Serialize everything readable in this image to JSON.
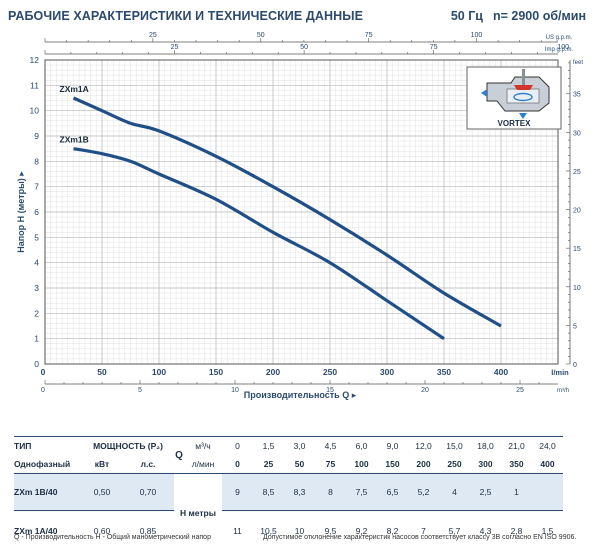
{
  "header": {
    "title": "РАБОЧИЕ ХАРАКТЕРИСТИКИ И ТЕХНИЧЕСКИЕ ДАННЫЕ",
    "frequency": "50 Гц",
    "speed": "n= 2900 об/мин"
  },
  "inset_label": "VORTEX",
  "colors": {
    "curve": "#1f4f86",
    "text": "#2b4a6e",
    "highlight_row": "#dfe9f3",
    "grid": "#b9b9b9"
  },
  "chart_data": {
    "type": "line",
    "xlabel": "Производительность Q",
    "ylabel": "Напор H (метры)",
    "x_unit": "l/min",
    "y_unit": "m",
    "xlim": [
      0,
      450
    ],
    "ylim": [
      0,
      12
    ],
    "x_ticks": [
      50,
      100,
      150,
      200,
      250,
      300,
      350,
      400
    ],
    "y_ticks": [
      1,
      2,
      3,
      4,
      5,
      6,
      7,
      8,
      9,
      10,
      11,
      12
    ],
    "grid": true,
    "top_axes": [
      {
        "unit": "US g.p.m.",
        "ticks": [
          "25",
          "50",
          "75",
          "100"
        ]
      },
      {
        "unit": "Imp g.p.m.",
        "ticks": [
          "25",
          "50",
          "75",
          "100"
        ]
      }
    ],
    "bottom_axis_m3h": {
      "unit": "m³/h",
      "ticks": [
        "5",
        "10",
        "15",
        "20",
        "25"
      ]
    },
    "right_axis_feet": {
      "unit": "feet",
      "ticks": [
        "5",
        "10",
        "15",
        "20",
        "25",
        "30",
        "35"
      ]
    },
    "series": [
      {
        "name": "ZXm1A",
        "x": [
          25,
          50,
          75,
          100,
          150,
          200,
          250,
          300,
          350,
          400
        ],
        "y": [
          10.5,
          10.0,
          9.5,
          9.2,
          8.2,
          7.0,
          5.7,
          4.3,
          2.8,
          1.5
        ]
      },
      {
        "name": "ZXm1B",
        "x": [
          25,
          50,
          75,
          100,
          150,
          200,
          250,
          300,
          350
        ],
        "y": [
          8.5,
          8.3,
          8.0,
          7.5,
          6.5,
          5.2,
          4.0,
          2.5,
          1.0
        ]
      }
    ]
  },
  "table": {
    "col_type": "ТИП",
    "col_power": "МОЩНОСТЬ (P₂)",
    "q_label": "Q",
    "q_unit_m3": "м³/ч",
    "q_unit_l": "л/мин",
    "single_phase": "Однофазный",
    "kw": "кВт",
    "hp": "л.с.",
    "h_label": "H метры",
    "q_m3h": [
      "0",
      "1,5",
      "3,0",
      "4,5",
      "6,0",
      "9,0",
      "12,0",
      "15,0",
      "18,0",
      "21,0",
      "24,0"
    ],
    "q_lmin": [
      "0",
      "25",
      "50",
      "75",
      "100",
      "150",
      "200",
      "250",
      "300",
      "350",
      "400"
    ],
    "rows": [
      {
        "type": "ZXm 1B/40",
        "kw": "0,50",
        "hp": "0,70",
        "h": [
          "9",
          "8,5",
          "8,3",
          "8",
          "7,5",
          "6,5",
          "5,2",
          "4",
          "2,5",
          "1",
          ""
        ]
      },
      {
        "type": "ZXm 1A/40",
        "kw": "0,60",
        "hp": "0,85",
        "h": [
          "11",
          "10,5",
          "10",
          "9,5",
          "9,2",
          "8,2",
          "7",
          "5,7",
          "4,3",
          "2,8",
          "1,5"
        ]
      }
    ]
  },
  "footer": {
    "left": "Q - Производительность   H - Общий манометрический напор",
    "right": "Допустимое отклонение характеристик насосов соответствует классу 3В согласно EN ISO 9906."
  }
}
